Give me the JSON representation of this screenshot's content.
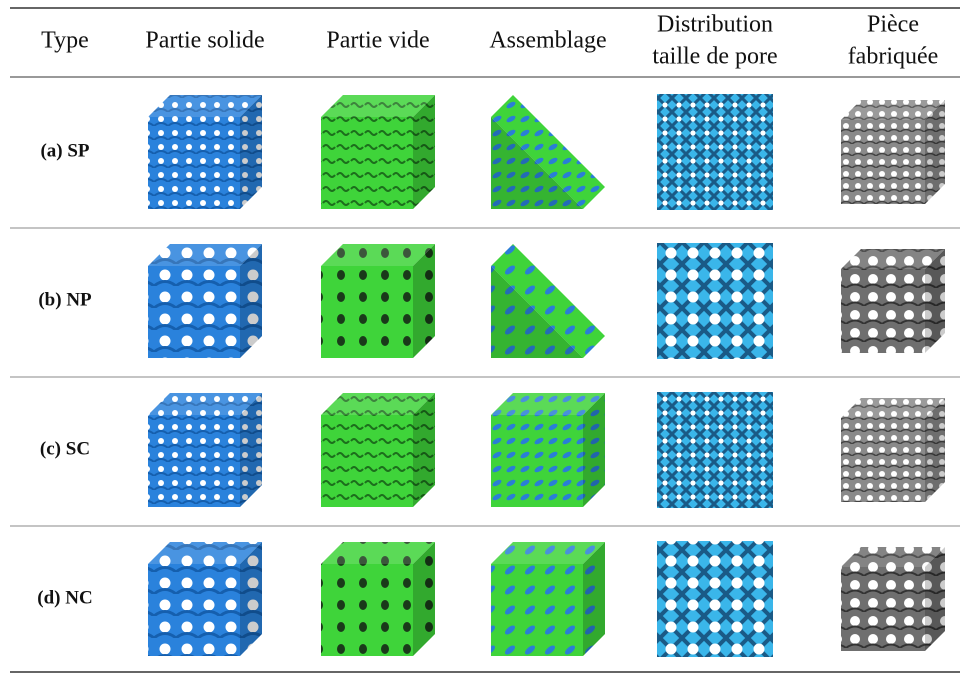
{
  "table": {
    "header": [
      [
        "Type"
      ],
      [
        "Partie solide"
      ],
      [
        "Partie vide"
      ],
      [
        "Assemblage"
      ],
      [
        "Distribution",
        "taille de pore"
      ],
      [
        "Pièce",
        "fabriquée"
      ]
    ],
    "rows": [
      [
        "(a) SP"
      ],
      [
        "(b) NP"
      ],
      [
        "(c) SC"
      ],
      [
        "(d) NC"
      ]
    ]
  }
}
